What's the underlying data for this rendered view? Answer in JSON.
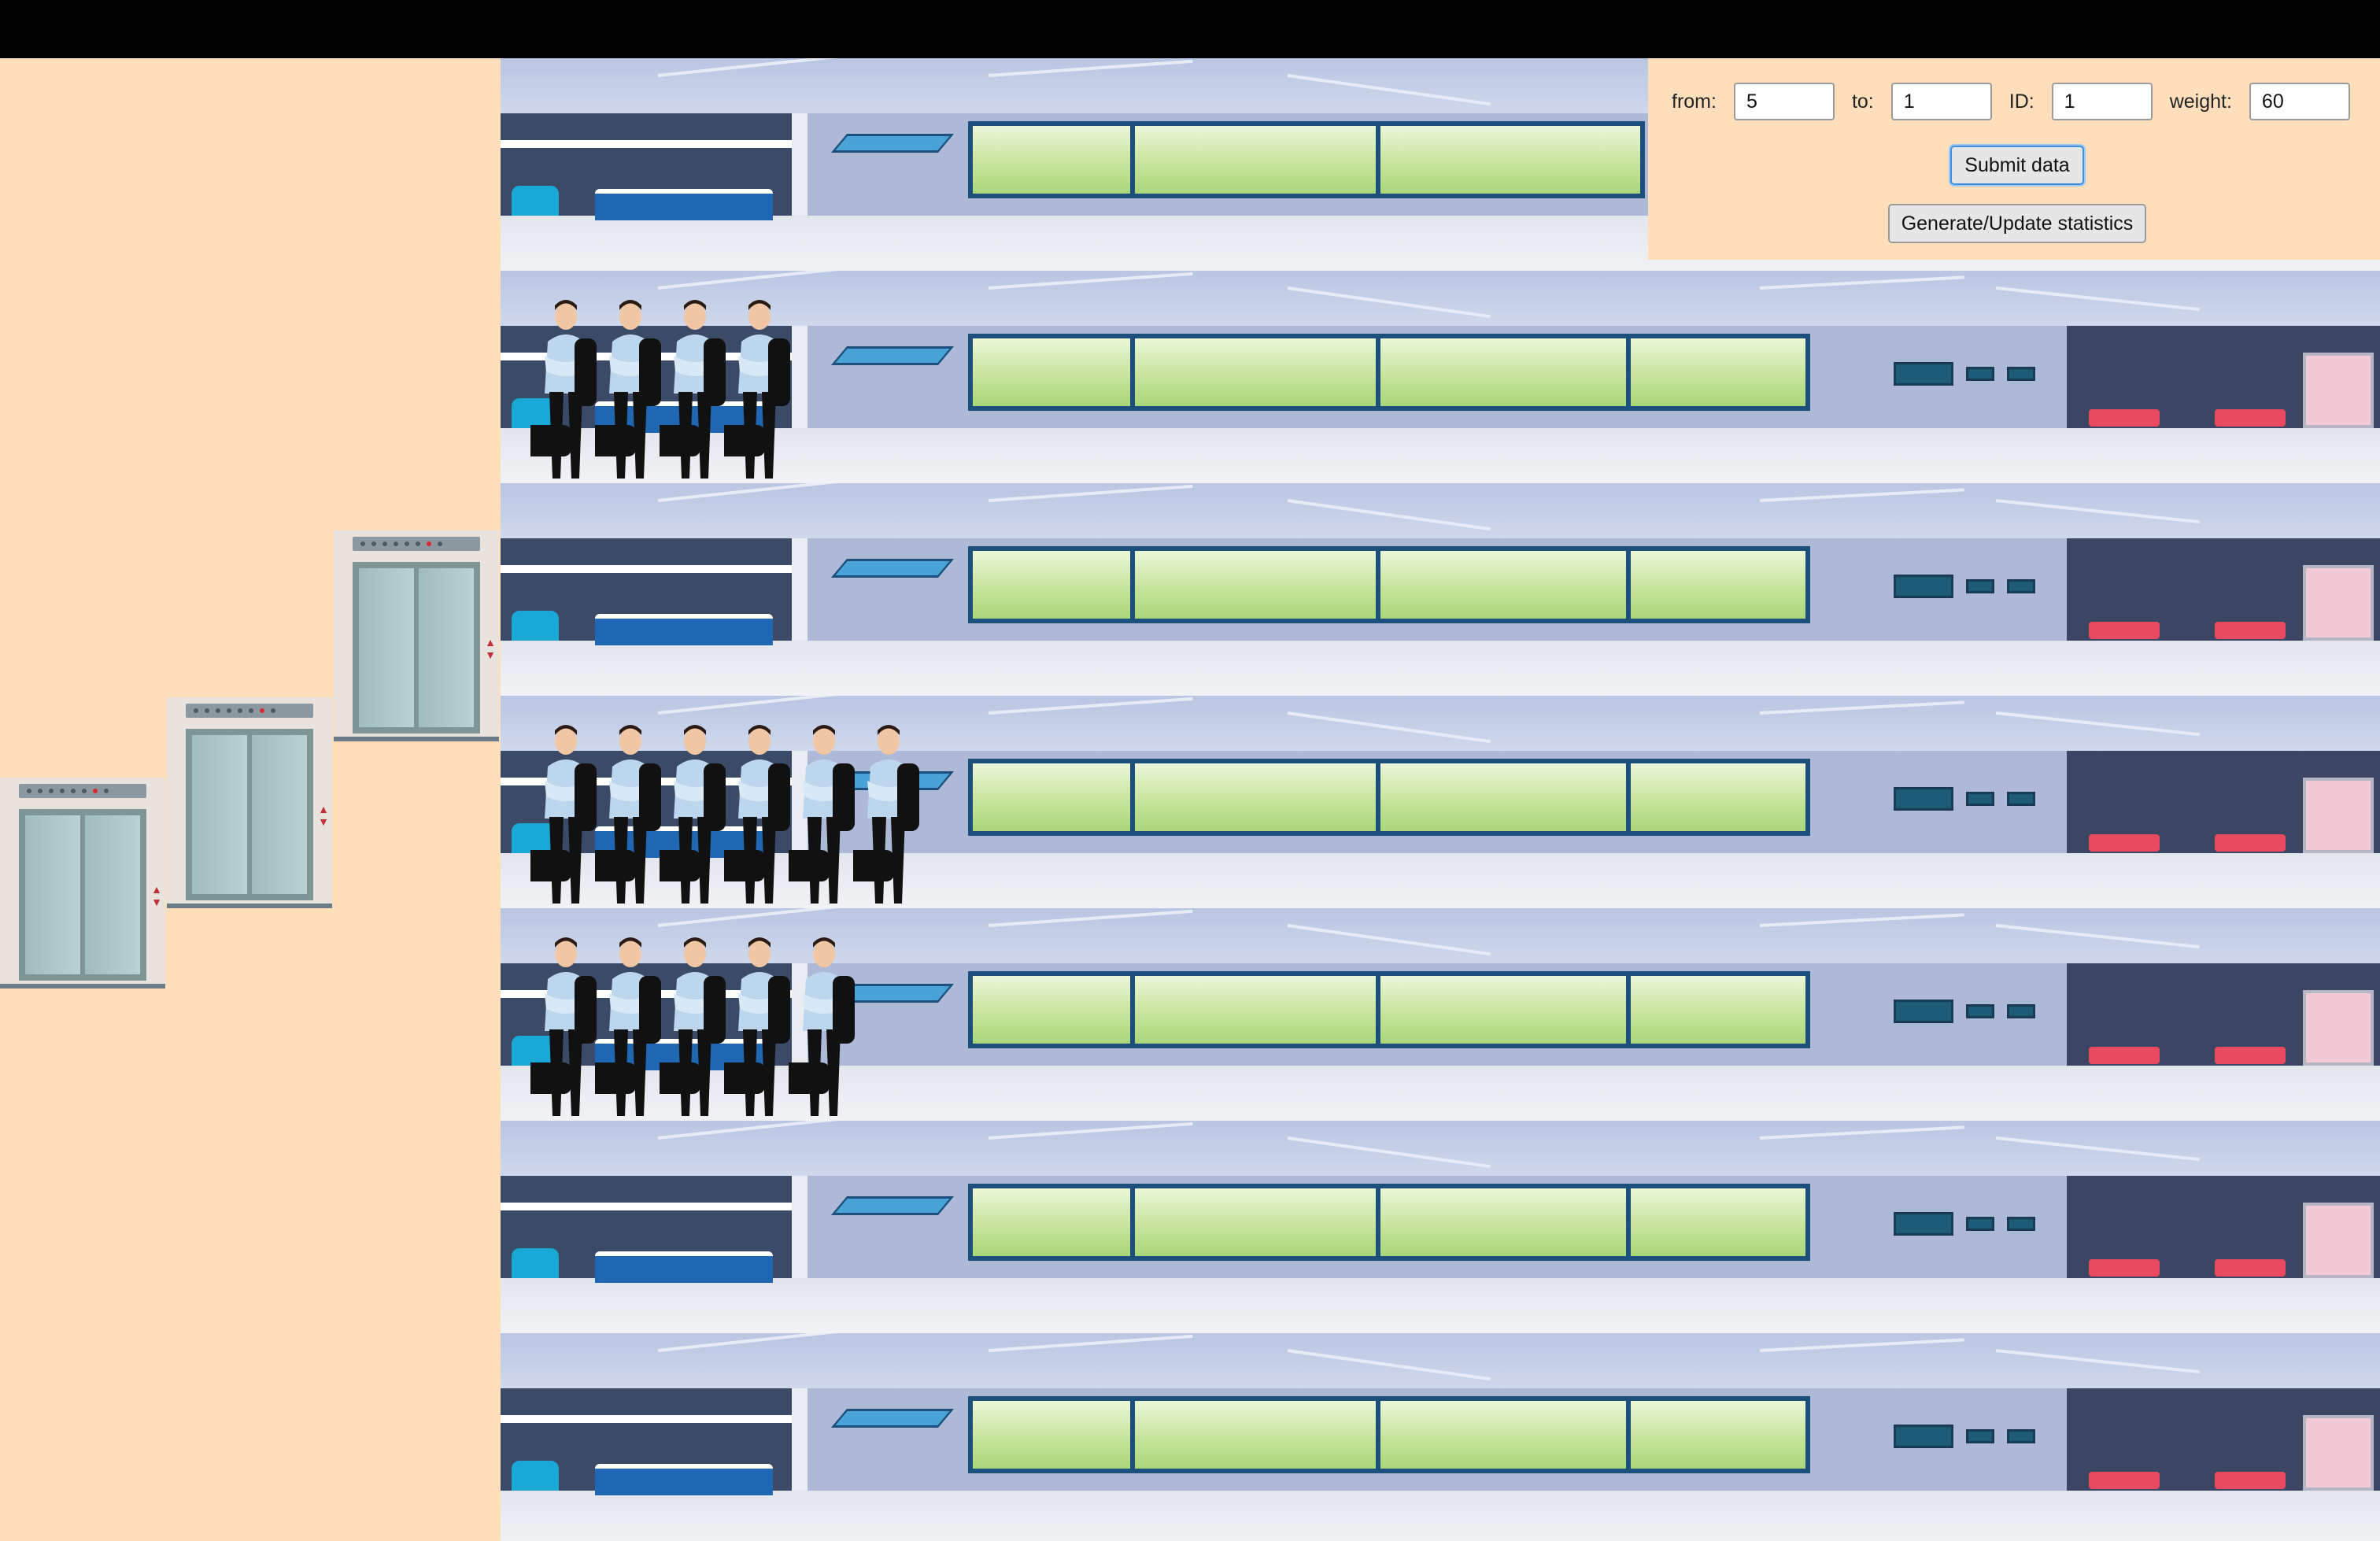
{
  "form": {
    "from_label": "from:",
    "from_value": "5",
    "to_label": "to:",
    "to_value": "1",
    "id_label": "ID:",
    "id_value": "1",
    "weight_label": "weight:",
    "weight_value": "60",
    "submit_label": "Submit data",
    "stats_label": "Generate/Update statistics"
  },
  "scene": {
    "floors": 7,
    "elevators": 3,
    "passengers_by_floor_from_top": [
      0,
      4,
      0,
      6,
      5,
      0,
      0
    ]
  },
  "colors": {
    "background": "#ffdfbb",
    "topbar": "#000000",
    "window_frame": "#1c4f7c",
    "sofa": "#e84a5f"
  }
}
